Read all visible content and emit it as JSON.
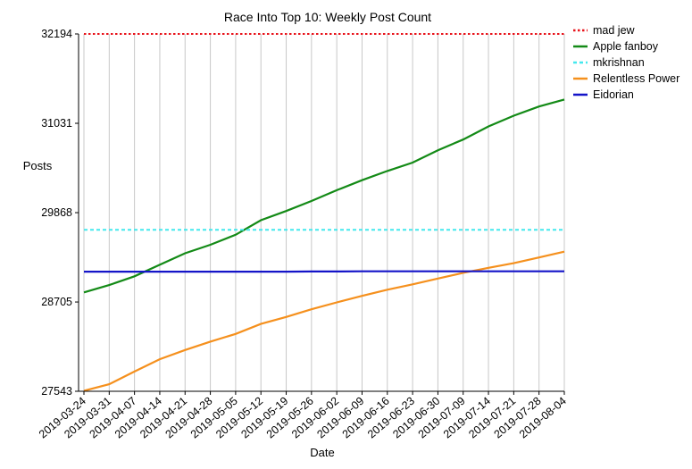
{
  "chart_data": {
    "type": "line",
    "title": "Race Into Top 10: Weekly Post Count",
    "xlabel": "Date",
    "ylabel": "Posts",
    "x_ticks": [
      "2019-03-24",
      "2019-03-31",
      "2019-04-07",
      "2019-04-14",
      "2019-04-21",
      "2019-04-28",
      "2019-05-05",
      "2019-05-12",
      "2019-05-19",
      "2019-05-26",
      "2019-06-02",
      "2019-06-09",
      "2019-06-16",
      "2019-06-23",
      "2019-06-30",
      "2019-07-09",
      "2019-07-14",
      "2019-07-21",
      "2019-07-28",
      "2019-08-04"
    ],
    "y_ticks": [
      27543,
      28705,
      29868,
      31031,
      32194
    ],
    "ylim": [
      27543,
      32194
    ],
    "grid": "vertical",
    "legend_position": "top-right",
    "series": [
      {
        "name": "mad jew",
        "color": "#e8141c",
        "style": "dotted",
        "values": [
          32194,
          32194,
          32194,
          32194,
          32194,
          32194,
          32194,
          32194,
          32194,
          32194,
          32194,
          32194,
          32194,
          32194,
          32194,
          32194,
          32194,
          32194,
          32194,
          32194
        ]
      },
      {
        "name": "Apple fanboy",
        "color": "#138a16",
        "style": "solid",
        "values": [
          28830,
          28925,
          29040,
          29190,
          29340,
          29450,
          29580,
          29770,
          29890,
          30020,
          30160,
          30290,
          30410,
          30520,
          30680,
          30820,
          30990,
          31130,
          31250,
          31340
        ]
      },
      {
        "name": "mkrishnan",
        "color": "#44e8ee",
        "style": "dashed",
        "values": [
          29645,
          29645,
          29645,
          29645,
          29645,
          29645,
          29645,
          29645,
          29645,
          29645,
          29645,
          29645,
          29645,
          29645,
          29645,
          29645,
          29645,
          29645,
          29645,
          29645
        ]
      },
      {
        "name": "Relentless Power",
        "color": "#f5901d",
        "style": "solid",
        "values": [
          27550,
          27635,
          27800,
          27960,
          28080,
          28190,
          28290,
          28420,
          28510,
          28610,
          28700,
          28785,
          28865,
          28935,
          29010,
          29085,
          29150,
          29210,
          29285,
          29360
        ]
      },
      {
        "name": "Eidorian",
        "color": "#1414c8",
        "style": "solid",
        "values": [
          29100,
          29100,
          29100,
          29100,
          29100,
          29100,
          29100,
          29100,
          29100,
          29102,
          29102,
          29105,
          29105,
          29105,
          29105,
          29105,
          29105,
          29105,
          29105,
          29105
        ]
      }
    ]
  }
}
